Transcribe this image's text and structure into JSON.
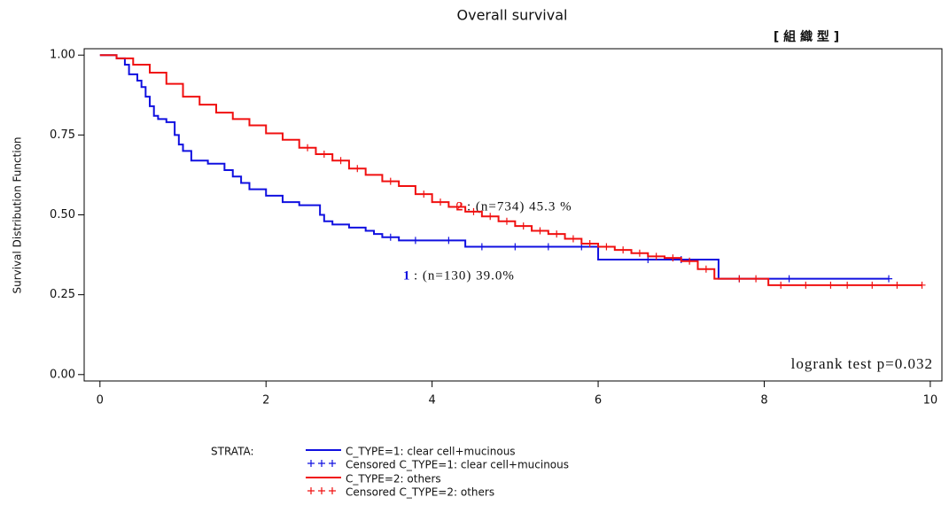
{
  "chart_data": {
    "type": "step",
    "title": "Overall survival",
    "subtitle": "[ 組 織 型 ]",
    "y_label": "Survival Distribution Function",
    "xlim": [
      -0.19,
      10.14
    ],
    "ylim": [
      -0.02,
      1.02
    ],
    "xticks": [
      0,
      2,
      4,
      6,
      8,
      10
    ],
    "yticks": [
      {
        "value": 0,
        "label": "0.00"
      },
      {
        "value": 0.25,
        "label": "0.25"
      },
      {
        "value": 0.5,
        "label": "0.50"
      },
      {
        "value": 0.75,
        "label": "0.75"
      },
      {
        "value": 1,
        "label": "1.00"
      }
    ],
    "legend_title": "STRATA:",
    "series": [
      {
        "name": "C_TYPE=1: clear cell+mucinous",
        "color": "#1010e0",
        "x": [
          0,
          0.2,
          0.3,
          0.35,
          0.45,
          0.5,
          0.55,
          0.6,
          0.65,
          0.7,
          0.8,
          0.9,
          0.95,
          1.0,
          1.1,
          1.3,
          1.5,
          1.6,
          1.7,
          1.8,
          2.0,
          2.2,
          2.4,
          2.65,
          2.7,
          2.8,
          3.0,
          3.2,
          3.3,
          3.4,
          3.6,
          4.4,
          6.0,
          7.45,
          9.5
        ],
        "values": [
          1,
          0.99,
          0.97,
          0.94,
          0.92,
          0.9,
          0.87,
          0.84,
          0.81,
          0.8,
          0.79,
          0.75,
          0.72,
          0.7,
          0.67,
          0.66,
          0.64,
          0.62,
          0.6,
          0.58,
          0.56,
          0.54,
          0.53,
          0.5,
          0.48,
          0.47,
          0.46,
          0.45,
          0.44,
          0.43,
          0.42,
          0.4,
          0.36,
          0.3,
          0.3
        ],
        "censored": {
          "name": "Censored C_TYPE=1: clear cell+mucinous",
          "x": [
            3.5,
            3.8,
            4.2,
            4.6,
            5.0,
            5.4,
            5.8,
            6.6,
            7.0,
            7.7,
            8.3,
            9.5
          ],
          "values": [
            0.43,
            0.42,
            0.42,
            0.4,
            0.4,
            0.4,
            0.4,
            0.36,
            0.36,
            0.3,
            0.3,
            0.3
          ]
        }
      },
      {
        "name": "C_TYPE=2: others",
        "color": "#f01010",
        "x": [
          0,
          0.2,
          0.4,
          0.6,
          0.8,
          1.0,
          1.2,
          1.4,
          1.6,
          1.8,
          2.0,
          2.2,
          2.4,
          2.6,
          2.8,
          3.0,
          3.2,
          3.4,
          3.6,
          3.8,
          4.0,
          4.2,
          4.4,
          4.6,
          4.8,
          5.0,
          5.2,
          5.4,
          5.6,
          5.8,
          6.0,
          6.2,
          6.4,
          6.6,
          6.8,
          7.0,
          7.2,
          7.4,
          8.05,
          9.9
        ],
        "values": [
          1,
          0.99,
          0.97,
          0.945,
          0.91,
          0.87,
          0.845,
          0.82,
          0.8,
          0.78,
          0.755,
          0.735,
          0.71,
          0.69,
          0.67,
          0.645,
          0.625,
          0.605,
          0.59,
          0.565,
          0.54,
          0.525,
          0.51,
          0.495,
          0.48,
          0.465,
          0.45,
          0.44,
          0.425,
          0.41,
          0.4,
          0.39,
          0.38,
          0.37,
          0.365,
          0.355,
          0.33,
          0.3,
          0.28,
          0.28
        ],
        "censored": {
          "name": "Censored C_TYPE=2: others",
          "x": [
            2.5,
            2.7,
            2.9,
            3.1,
            3.5,
            3.9,
            4.1,
            4.3,
            4.5,
            4.7,
            4.9,
            5.1,
            5.3,
            5.5,
            5.7,
            5.9,
            6.1,
            6.3,
            6.5,
            6.7,
            6.9,
            7.1,
            7.3,
            7.7,
            7.9,
            8.2,
            8.5,
            8.8,
            9.0,
            9.3,
            9.6,
            9.9
          ],
          "values": [
            0.71,
            0.69,
            0.67,
            0.645,
            0.605,
            0.565,
            0.54,
            0.525,
            0.51,
            0.495,
            0.48,
            0.465,
            0.45,
            0.44,
            0.425,
            0.41,
            0.4,
            0.39,
            0.38,
            0.37,
            0.365,
            0.355,
            0.33,
            0.3,
            0.3,
            0.28,
            0.28,
            0.28,
            0.28,
            0.28,
            0.28,
            0.28
          ]
        }
      }
    ],
    "annotations": [
      {
        "label": "2",
        "text": ":  (n=734)  45.3 %",
        "color": "#f01010"
      },
      {
        "label": "1",
        "text": ":  (n=130)  39.0%",
        "color": "#1010e0"
      }
    ],
    "test_note": "logrank test p=0.032"
  }
}
